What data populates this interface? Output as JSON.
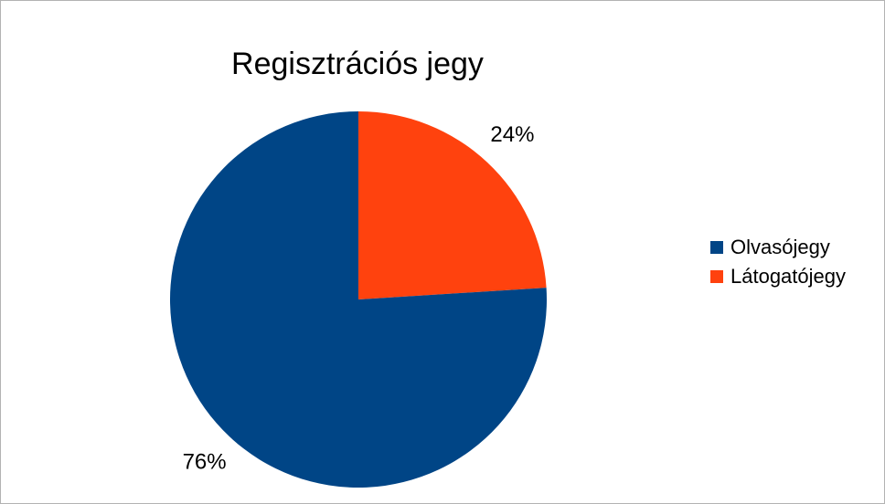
{
  "chart_data": {
    "type": "pie",
    "title": "Regisztrációs jegy",
    "categories": [
      "Olvasójegy",
      "Látogatójegy"
    ],
    "values": [
      76,
      24
    ],
    "data_labels": [
      "76%",
      "24%"
    ],
    "colors": [
      "#004586",
      "#ff420e"
    ],
    "start_angle_deg": 0,
    "direction": "counterclockwise-from-top",
    "legend": "right"
  }
}
